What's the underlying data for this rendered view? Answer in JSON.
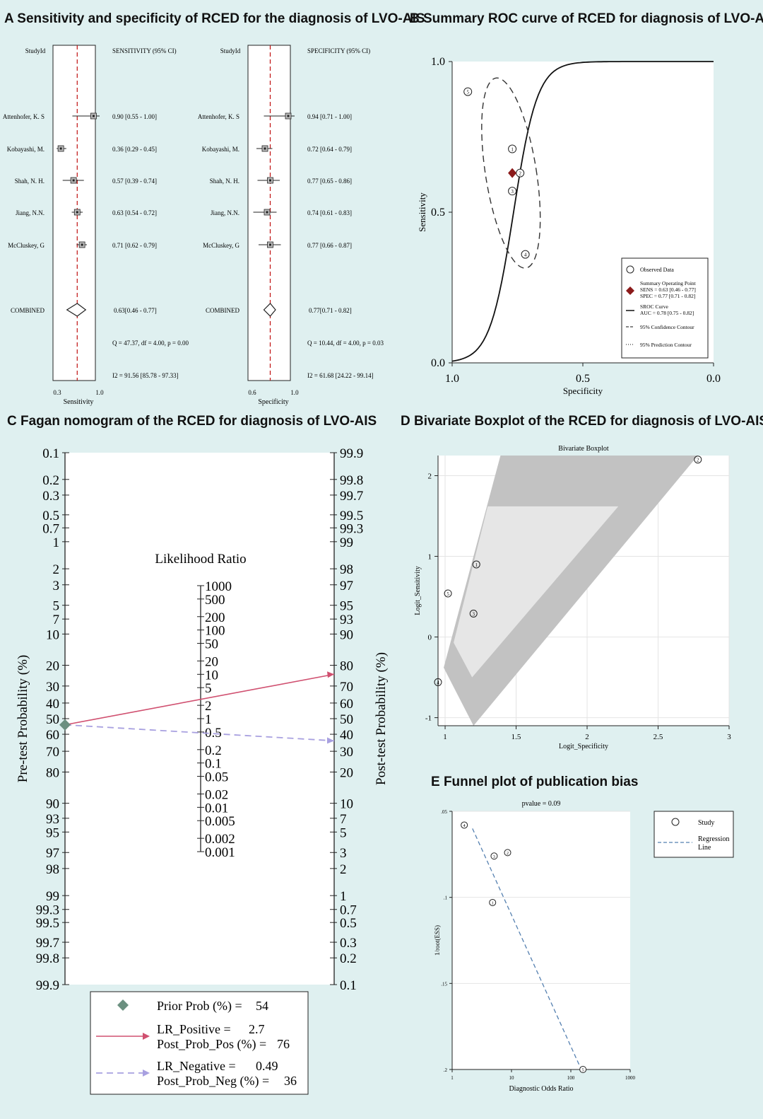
{
  "panels": {
    "A": {
      "title": "A Sensitivity and specificity of RCED for the diagnosis of LVO-AIS"
    },
    "B": {
      "title": "B Summary ROC curve of RCED for diagnosis of LVO-AIS"
    },
    "C": {
      "title": "C Fagan nomogram of the RCED for diagnosis of LVO-AIS"
    },
    "D": {
      "title": "D Bivariate Boxplot of the RCED for diagnosis of LVO-AIS"
    },
    "E": {
      "title": "E Funnel plot of publication bias"
    }
  },
  "chart_data": [
    {
      "id": "forest_sensitivity",
      "type": "forest",
      "study_col": "StudyId",
      "ci_col": "SENSITIVITY (95% CI)",
      "xlabel": "Sensitivity",
      "xticks": [
        "0.3",
        "1.0"
      ],
      "xlim": [
        0.3,
        1.0
      ],
      "reference_line": 0.63,
      "studies": [
        {
          "name": "Attenhofer, K. S",
          "est": 0.9,
          "lo": 0.55,
          "hi": 1.0,
          "label": "0.90 [0.55 - 1.00]"
        },
        {
          "name": "Kobayashi, M.",
          "est": 0.36,
          "lo": 0.29,
          "hi": 0.45,
          "label": "0.36 [0.29 - 0.45]"
        },
        {
          "name": "Shah, N. H.",
          "est": 0.57,
          "lo": 0.39,
          "hi": 0.74,
          "label": "0.57 [0.39 - 0.74]"
        },
        {
          "name": "Jiang, N.N.",
          "est": 0.63,
          "lo": 0.54,
          "hi": 0.72,
          "label": "0.63 [0.54 - 0.72]"
        },
        {
          "name": "McCluskey, G",
          "est": 0.71,
          "lo": 0.62,
          "hi": 0.79,
          "label": "0.71 [0.62 - 0.79]"
        }
      ],
      "combined": {
        "name": "COMBINED",
        "est": 0.63,
        "lo": 0.46,
        "hi": 0.77,
        "label": "0.63[0.46 - 0.77]"
      },
      "heterogeneity_q": "Q = 47.37, df = 4.00, p = 0.00",
      "heterogeneity_i2": "I2 = 91.56 [85.78 - 97.33]"
    },
    {
      "id": "forest_specificity",
      "type": "forest",
      "study_col": "StudyId",
      "ci_col": "SPECIFICITY (95% CI)",
      "xlabel": "Specificity",
      "xticks": [
        "0.6",
        "1.0"
      ],
      "xlim": [
        0.6,
        1.0
      ],
      "reference_line": 0.77,
      "studies": [
        {
          "name": "Attenhofer, K. S",
          "est": 0.94,
          "lo": 0.71,
          "hi": 1.0,
          "label": "0.94 [0.71 - 1.00]"
        },
        {
          "name": "Kobayashi, M.",
          "est": 0.72,
          "lo": 0.64,
          "hi": 0.79,
          "label": "0.72 [0.64 - 0.79]"
        },
        {
          "name": "Shah, N. H.",
          "est": 0.77,
          "lo": 0.65,
          "hi": 0.86,
          "label": "0.77 [0.65 - 0.86]"
        },
        {
          "name": "Jiang, N.N.",
          "est": 0.74,
          "lo": 0.61,
          "hi": 0.83,
          "label": "0.74 [0.61 - 0.83]"
        },
        {
          "name": "McCluskey, G",
          "est": 0.77,
          "lo": 0.66,
          "hi": 0.87,
          "label": "0.77 [0.66 - 0.87]"
        }
      ],
      "combined": {
        "name": "COMBINED",
        "est": 0.77,
        "lo": 0.71,
        "hi": 0.82,
        "label": "0.77[0.71 - 0.82]"
      },
      "heterogeneity_q": "Q = 10.44, df = 4.00, p = 0.03",
      "heterogeneity_i2": "I2 = 61.68 [24.22 - 99.14]"
    },
    {
      "id": "sroc",
      "type": "scatter",
      "xlabel": "Specificity",
      "ylabel": "Sensitivity",
      "xlim": [
        1.0,
        0.0
      ],
      "ylim": [
        0.0,
        1.0
      ],
      "xticks": [
        "1.0",
        "0.5",
        "0.0"
      ],
      "yticks": [
        "0.0",
        "0.5",
        "1.0"
      ],
      "observed": [
        {
          "id": "5",
          "spec": 0.94,
          "sens": 0.9
        },
        {
          "id": "1",
          "spec": 0.77,
          "sens": 0.71
        },
        {
          "id": "2",
          "spec": 0.74,
          "sens": 0.63
        },
        {
          "id": "3",
          "spec": 0.77,
          "sens": 0.57
        },
        {
          "id": "4",
          "spec": 0.72,
          "sens": 0.36
        }
      ],
      "summary_point": {
        "spec": 0.77,
        "sens": 0.63
      },
      "legend": {
        "observed": "Observed Data",
        "summary_title": "Summary Operating Point",
        "summary_sens": "SENS = 0.63 [0.46 - 0.77]",
        "summary_spec": "SPEC = 0.77 [0.71 - 0.82]",
        "sroc_title": "SROC Curve",
        "sroc_auc": "AUC = 0.78 [0.75 - 0.82]",
        "confidence": "95% Confidence Contour",
        "prediction": "95% Prediction Contour"
      }
    },
    {
      "id": "fagan",
      "type": "nomogram",
      "left_label": "Pre-test Probability (%)",
      "right_label": "Post-test Probability (%)",
      "lr_title": "Likelihood Ratio",
      "left_ticks": [
        0.1,
        0.2,
        0.3,
        0.5,
        0.7,
        1,
        2,
        3,
        5,
        7,
        10,
        20,
        30,
        40,
        50,
        60,
        70,
        80,
        90,
        93,
        95,
        97,
        98,
        99,
        99.3,
        99.5,
        99.7,
        99.8,
        99.9
      ],
      "right_ticks": [
        99.9,
        99.8,
        99.7,
        99.5,
        99.3,
        99,
        98,
        97,
        95,
        93,
        90,
        80,
        70,
        60,
        50,
        40,
        30,
        20,
        10,
        7,
        5,
        3,
        2,
        1,
        0.7,
        0.5,
        0.3,
        0.2,
        0.1
      ],
      "lr_ticks": [
        1000,
        500,
        200,
        100,
        50,
        20,
        10,
        5,
        2,
        1,
        0.5,
        0.2,
        0.1,
        0.05,
        0.02,
        0.01,
        0.005,
        0.002,
        0.001
      ],
      "prior_prob": 54,
      "lr_positive": 2.7,
      "post_prob_pos": 76,
      "lr_negative": 0.49,
      "post_prob_neg": 36,
      "legend": {
        "prior": "Prior Prob (%) =",
        "prior_val": "54",
        "lrpos": "LR_Positive =",
        "lrpos_val": "2.7",
        "postpos": "Post_Prob_Pos (%) =",
        "postpos_val": "76",
        "lrneg": "LR_Negative =",
        "lrneg_val": "0.49",
        "postneg": "Post_Prob_Neg (%) =",
        "postneg_val": "36"
      }
    },
    {
      "id": "bivariate_boxplot",
      "type": "scatter",
      "title": "Bivariate Boxplot",
      "xlabel": "Logit_Specificity",
      "ylabel": "Logit_Sensitivity",
      "xlim": [
        0.95,
        3.0
      ],
      "ylim": [
        -1.1,
        2.25
      ],
      "xticks": [
        1,
        1.5,
        2,
        2.5,
        3
      ],
      "yticks": [
        -1,
        0,
        1,
        2
      ],
      "points": [
        {
          "id": "1",
          "x": 1.22,
          "y": 0.9
        },
        {
          "id": "2",
          "x": 2.78,
          "y": 2.2
        },
        {
          "id": "3",
          "x": 1.2,
          "y": 0.29
        },
        {
          "id": "4",
          "x": 0.95,
          "y": -0.56
        },
        {
          "id": "5",
          "x": 1.02,
          "y": 0.54
        }
      ],
      "outer_hull": [
        [
          0.99,
          -0.38
        ],
        [
          1.39,
          2.25
        ],
        [
          2.78,
          2.25
        ],
        [
          1.2,
          -1.1
        ]
      ],
      "inner_hull": [
        [
          1.06,
          -0.07
        ],
        [
          1.3,
          1.62
        ],
        [
          2.22,
          1.62
        ],
        [
          1.19,
          -0.5
        ]
      ]
    },
    {
      "id": "funnel",
      "type": "scatter",
      "title": "pvalue = 0.09",
      "xlabel": "Diagnostic Odds Ratio",
      "ylabel": "1/root(ESS)",
      "x_scale": "log",
      "xlim": [
        1,
        1000
      ],
      "ylim": [
        0.05,
        0.2
      ],
      "y_reversed": true,
      "xticks": [
        "1",
        "10",
        "100",
        "1000"
      ],
      "yticks": [
        ".05",
        ".1",
        ".15",
        ".2"
      ],
      "points": [
        {
          "id": "4",
          "x": 1.6,
          "y": 0.058
        },
        {
          "id": "3",
          "x": 5.1,
          "y": 0.076
        },
        {
          "id": "2",
          "x": 8.6,
          "y": 0.074
        },
        {
          "id": "1",
          "x": 4.8,
          "y": 0.103
        },
        {
          "id": "5",
          "x": 160,
          "y": 0.2
        }
      ],
      "regression_line": [
        [
          2.2,
          0.06
        ],
        [
          150,
          0.2
        ]
      ],
      "legend": {
        "study": "Study",
        "regression_1": "Regression",
        "regression_2": "Line"
      }
    }
  ]
}
